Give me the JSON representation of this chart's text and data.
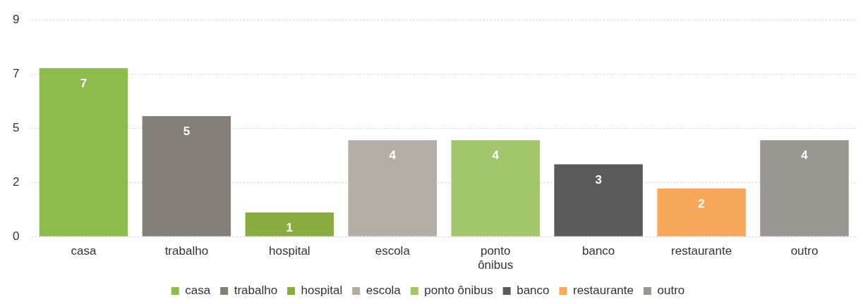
{
  "chart_data": {
    "type": "bar",
    "categories": [
      "casa",
      "trabalho",
      "hospital",
      "escola",
      "ponto ônibus",
      "banco",
      "restaurante",
      "outro"
    ],
    "series": [
      {
        "name": "casa",
        "color": "#8dbb4c",
        "values": [
          7,
          null,
          null,
          null,
          null,
          null,
          null,
          null
        ]
      },
      {
        "name": "trabalho",
        "color": "#857f79",
        "values": [
          null,
          5,
          null,
          null,
          null,
          null,
          null,
          null
        ]
      },
      {
        "name": "hospital",
        "color": "#8aab3f",
        "values": [
          null,
          null,
          1,
          null,
          null,
          null,
          null,
          null
        ]
      },
      {
        "name": "escola",
        "color": "#b4ada6",
        "values": [
          null,
          null,
          null,
          4,
          null,
          null,
          null,
          null
        ]
      },
      {
        "name": "ponto ônibus",
        "color": "#a1c66c",
        "values": [
          null,
          null,
          null,
          null,
          4,
          null,
          null,
          null
        ]
      },
      {
        "name": "banco",
        "color": "#5b5b5b",
        "values": [
          null,
          null,
          null,
          null,
          null,
          3,
          null,
          null
        ]
      },
      {
        "name": "restaurante",
        "color": "#f7a85a",
        "values": [
          null,
          null,
          null,
          null,
          null,
          null,
          2,
          null
        ]
      },
      {
        "name": "outro",
        "color": "#9a9691",
        "values": [
          null,
          null,
          null,
          null,
          null,
          null,
          null,
          4
        ]
      }
    ],
    "ylim": [
      0,
      9
    ],
    "yticks": [
      0,
      {
        "value": 2.25,
        "label": "2"
      },
      {
        "value": 4.5,
        "label": "5"
      },
      {
        "value": 6.75,
        "label": "7"
      },
      9
    ],
    "grid": "y",
    "legend": "bottom",
    "data_labels": true
  }
}
